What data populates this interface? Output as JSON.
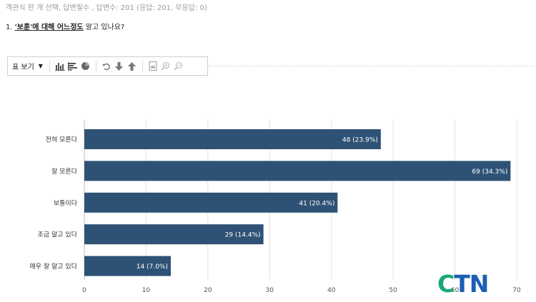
{
  "header": {
    "meta": "객관식 한 개 선택, 답변필수 , 답변수: 201 (응답: 201, 무응답: 0)",
    "question_prefix": "1. ",
    "question_keyword": "'보훈'에 대해 어느정도",
    "question_suffix": " 알고 있나요?"
  },
  "toolbar": {
    "view_label": "표 보기",
    "buttons": [
      "bar-chart-icon",
      "horizontal-bar-chart-icon",
      "pie-chart-icon",
      "undo-icon",
      "move-down-icon",
      "move-up-icon",
      "export-icon",
      "zoom-in-icon",
      "zoom-out-icon"
    ]
  },
  "chart_data": {
    "type": "bar",
    "orientation": "horizontal",
    "categories": [
      "전혀 모른다",
      "잘 모른다",
      "보통이다",
      "조금 알고 있다",
      "매우 잘 알고 있다"
    ],
    "values": [
      48,
      69,
      41,
      29,
      14
    ],
    "labels": [
      "48 (23.9%)",
      "69 (34.3%)",
      "41 (20.4%)",
      "29 (14.4%)",
      "14 (7.0%)"
    ],
    "xlim": [
      0,
      70
    ],
    "xticks": [
      0,
      10,
      20,
      30,
      40,
      50,
      60,
      70
    ],
    "grid": true,
    "bar_color": "#2e5275",
    "grid_color": "#e3e3e3"
  },
  "logo": {
    "text": "CTN",
    "colors": {
      "C": "#19a974",
      "TN": "#1a5fb4"
    }
  }
}
